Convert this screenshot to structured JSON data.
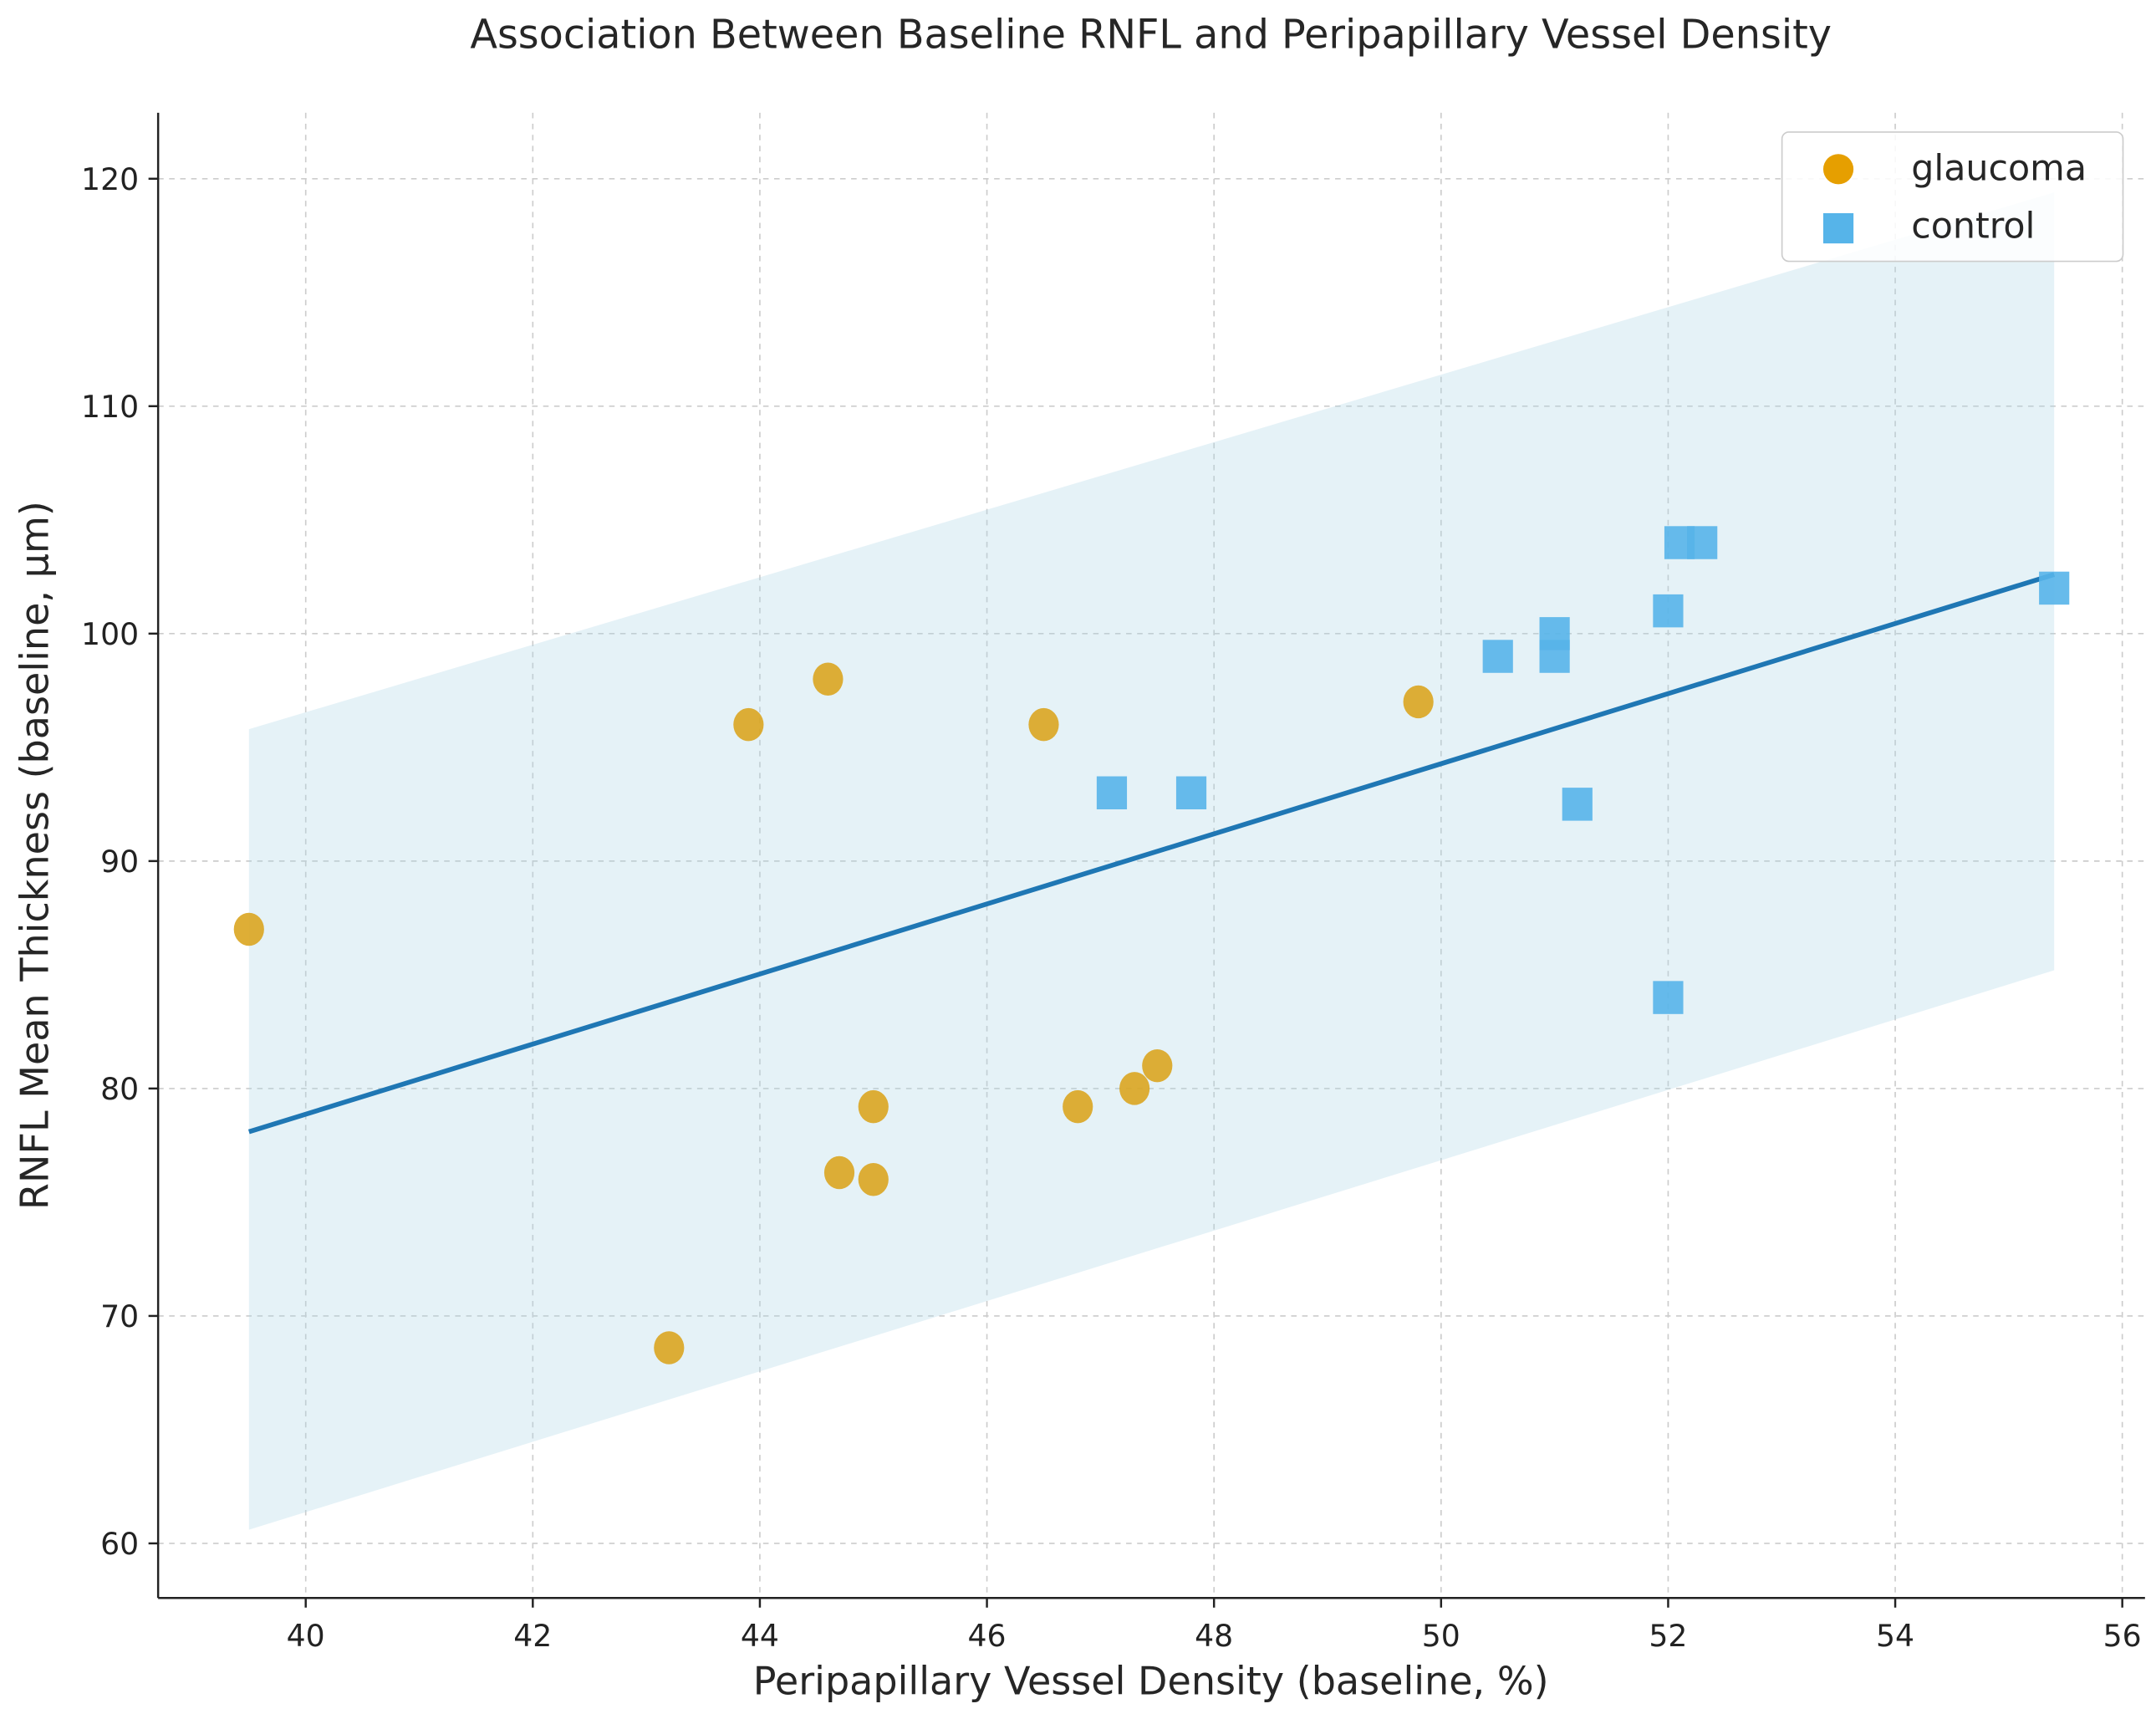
{
  "chart_data": {
    "type": "scatter",
    "title": "Association Between Baseline RNFL and Peripapillary Vessel Density",
    "xlabel": "Peripapillary Vessel Density (baseline, %)",
    "ylabel": "RNFL Mean Thickness (baseline, µm)",
    "xlim": [
      38.7,
      56.2
    ],
    "ylim": [
      57.6,
      122.9
    ],
    "xticks": [
      40,
      42,
      44,
      46,
      48,
      50,
      52,
      54,
      56
    ],
    "yticks": [
      60,
      70,
      80,
      90,
      100,
      110,
      120
    ],
    "grid": true,
    "legend_position": "top-right",
    "series": [
      {
        "name": "glaucoma",
        "marker": "circle",
        "color": "#DAA520",
        "legend_color": "#E69F00",
        "x": [
          39.5,
          43.9,
          44.6,
          46.5,
          49.8,
          43.2,
          44.7,
          45.0,
          45.0,
          46.8,
          47.3,
          47.5
        ],
        "y": [
          87,
          96,
          98,
          96,
          97,
          68.6,
          76.3,
          76,
          79.2,
          79.2,
          80,
          81
        ]
      },
      {
        "name": "control",
        "marker": "square",
        "color": "#56B4E9",
        "x": [
          47.1,
          47.8,
          50.5,
          51.0,
          51.0,
          51.2,
          52.0,
          52.1,
          52.3,
          52.0,
          55.4
        ],
        "y": [
          93,
          93,
          99,
          100,
          99,
          92.5,
          101,
          104,
          104,
          84,
          102
        ]
      }
    ],
    "regression_line": {
      "color": "#1F77B4",
      "x": [
        39.5,
        55.4
      ],
      "y": [
        78.1,
        102.6
      ]
    },
    "prediction_band": {
      "color": "#ADD8E6",
      "x": [
        39.5,
        55.4
      ],
      "upper": [
        95.8,
        119.4
      ],
      "lower": [
        60.6,
        85.2
      ]
    }
  }
}
